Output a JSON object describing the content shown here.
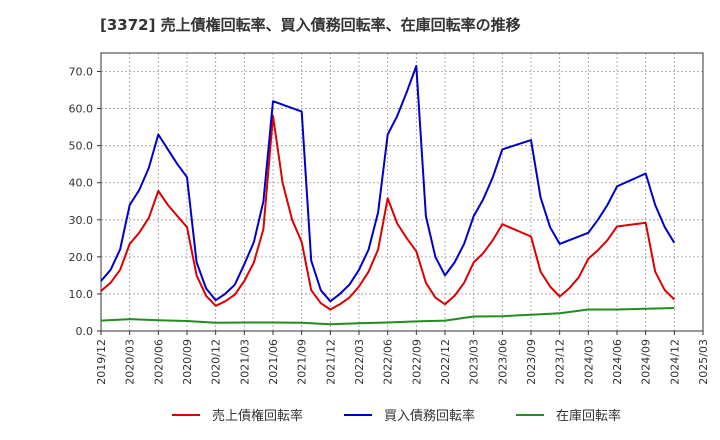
{
  "chart_data": {
    "type": "line",
    "title": "[3372]  売上債権回転率、買入債務回転率、在庫回転率の推移",
    "xlabel": "",
    "ylabel": "",
    "ylim": [
      0,
      75
    ],
    "yticks": [
      "0.0",
      "10.0",
      "20.0",
      "30.0",
      "40.0",
      "50.0",
      "60.0",
      "70.0"
    ],
    "x_tick_labels": [
      "2019/12",
      "2020/03",
      "2020/06",
      "2020/09",
      "2020/12",
      "2021/03",
      "2021/06",
      "2021/09",
      "2021/12",
      "2022/03",
      "2022/06",
      "2022/09",
      "2022/12",
      "2023/03",
      "2023/06",
      "2023/09",
      "2023/12",
      "2024/03",
      "2024/06",
      "2024/09",
      "2024/12",
      "2025/03"
    ],
    "x_range_months": [
      0,
      63
    ],
    "grid": true,
    "legend_position": "bottom",
    "series": [
      {
        "name": "売上債権回転率",
        "color": "#dd0000",
        "points": [
          [
            0,
            10.8
          ],
          [
            1,
            13.0
          ],
          [
            2,
            16.5
          ],
          [
            3,
            23.5
          ],
          [
            4,
            26.5
          ],
          [
            5,
            30.5
          ],
          [
            6,
            37.8
          ],
          [
            7,
            34.0
          ],
          [
            8,
            31.0
          ],
          [
            9,
            28.0
          ],
          [
            10,
            15.0
          ],
          [
            11,
            9.5
          ],
          [
            12,
            6.8
          ],
          [
            13,
            8.0
          ],
          [
            14,
            9.8
          ],
          [
            15,
            13.5
          ],
          [
            16,
            18.5
          ],
          [
            17,
            27.5
          ],
          [
            18,
            58.0
          ],
          [
            19,
            40.0
          ],
          [
            20,
            30.0
          ],
          [
            21,
            24.0
          ],
          [
            22,
            11.0
          ],
          [
            23,
            7.5
          ],
          [
            24,
            5.8
          ],
          [
            25,
            7.2
          ],
          [
            26,
            9.0
          ],
          [
            27,
            12.0
          ],
          [
            28,
            16.0
          ],
          [
            29,
            22.0
          ],
          [
            30,
            35.8
          ],
          [
            31,
            29.0
          ],
          [
            32,
            25.0
          ],
          [
            33,
            21.5
          ],
          [
            34,
            13.0
          ],
          [
            35,
            9.0
          ],
          [
            36,
            7.2
          ],
          [
            37,
            9.5
          ],
          [
            38,
            13.0
          ],
          [
            39,
            18.5
          ],
          [
            40,
            21.0
          ],
          [
            41,
            24.5
          ],
          [
            42,
            28.8
          ],
          [
            45,
            25.5
          ],
          [
            46,
            16.0
          ],
          [
            47,
            12.0
          ],
          [
            48,
            9.3
          ],
          [
            49,
            11.5
          ],
          [
            50,
            14.5
          ],
          [
            51,
            19.5
          ],
          [
            52,
            21.8
          ],
          [
            53,
            24.5
          ],
          [
            54,
            28.2
          ],
          [
            57,
            29.2
          ],
          [
            58,
            16.0
          ],
          [
            59,
            11.0
          ],
          [
            60,
            8.5
          ]
        ]
      },
      {
        "name": "買入債務回転率",
        "color": "#0000cc",
        "points": [
          [
            0,
            13.5
          ],
          [
            1,
            16.5
          ],
          [
            2,
            22.0
          ],
          [
            3,
            34.0
          ],
          [
            4,
            38.0
          ],
          [
            5,
            44.0
          ],
          [
            6,
            53.0
          ],
          [
            7,
            49.0
          ],
          [
            8,
            45.0
          ],
          [
            9,
            41.5
          ],
          [
            10,
            18.5
          ],
          [
            11,
            11.5
          ],
          [
            12,
            8.3
          ],
          [
            13,
            10.0
          ],
          [
            14,
            12.5
          ],
          [
            15,
            18.0
          ],
          [
            16,
            24.0
          ],
          [
            17,
            35.0
          ],
          [
            18,
            62.0
          ],
          [
            21,
            59.2
          ],
          [
            22,
            19.0
          ],
          [
            23,
            11.0
          ],
          [
            24,
            8.0
          ],
          [
            25,
            10.0
          ],
          [
            26,
            12.5
          ],
          [
            27,
            16.5
          ],
          [
            28,
            22.0
          ],
          [
            29,
            32.0
          ],
          [
            30,
            53.0
          ],
          [
            31,
            58.0
          ],
          [
            32,
            64.5
          ],
          [
            33,
            71.5
          ],
          [
            34,
            31.0
          ],
          [
            35,
            20.0
          ],
          [
            36,
            15.0
          ],
          [
            37,
            18.5
          ],
          [
            38,
            23.5
          ],
          [
            39,
            31.0
          ],
          [
            40,
            35.5
          ],
          [
            41,
            41.5
          ],
          [
            42,
            49.0
          ],
          [
            45,
            51.5
          ],
          [
            46,
            36.0
          ],
          [
            47,
            28.0
          ],
          [
            48,
            23.5
          ],
          [
            51,
            26.5
          ],
          [
            52,
            30.0
          ],
          [
            53,
            34.0
          ],
          [
            54,
            39.0
          ],
          [
            57,
            42.5
          ],
          [
            58,
            34.0
          ],
          [
            59,
            28.0
          ],
          [
            60,
            23.8
          ]
        ]
      },
      {
        "name": "在庫回転率",
        "color": "#228b22",
        "points": [
          [
            0,
            2.8
          ],
          [
            3,
            3.2
          ],
          [
            6,
            2.9
          ],
          [
            9,
            2.7
          ],
          [
            12,
            2.2
          ],
          [
            15,
            2.3
          ],
          [
            18,
            2.3
          ],
          [
            21,
            2.2
          ],
          [
            24,
            1.8
          ],
          [
            27,
            2.1
          ],
          [
            30,
            2.3
          ],
          [
            33,
            2.6
          ],
          [
            36,
            2.8
          ],
          [
            39,
            3.9
          ],
          [
            42,
            4.0
          ],
          [
            45,
            4.4
          ],
          [
            48,
            4.8
          ],
          [
            51,
            5.8
          ],
          [
            54,
            5.8
          ],
          [
            57,
            6.0
          ],
          [
            60,
            6.2
          ]
        ]
      }
    ]
  }
}
